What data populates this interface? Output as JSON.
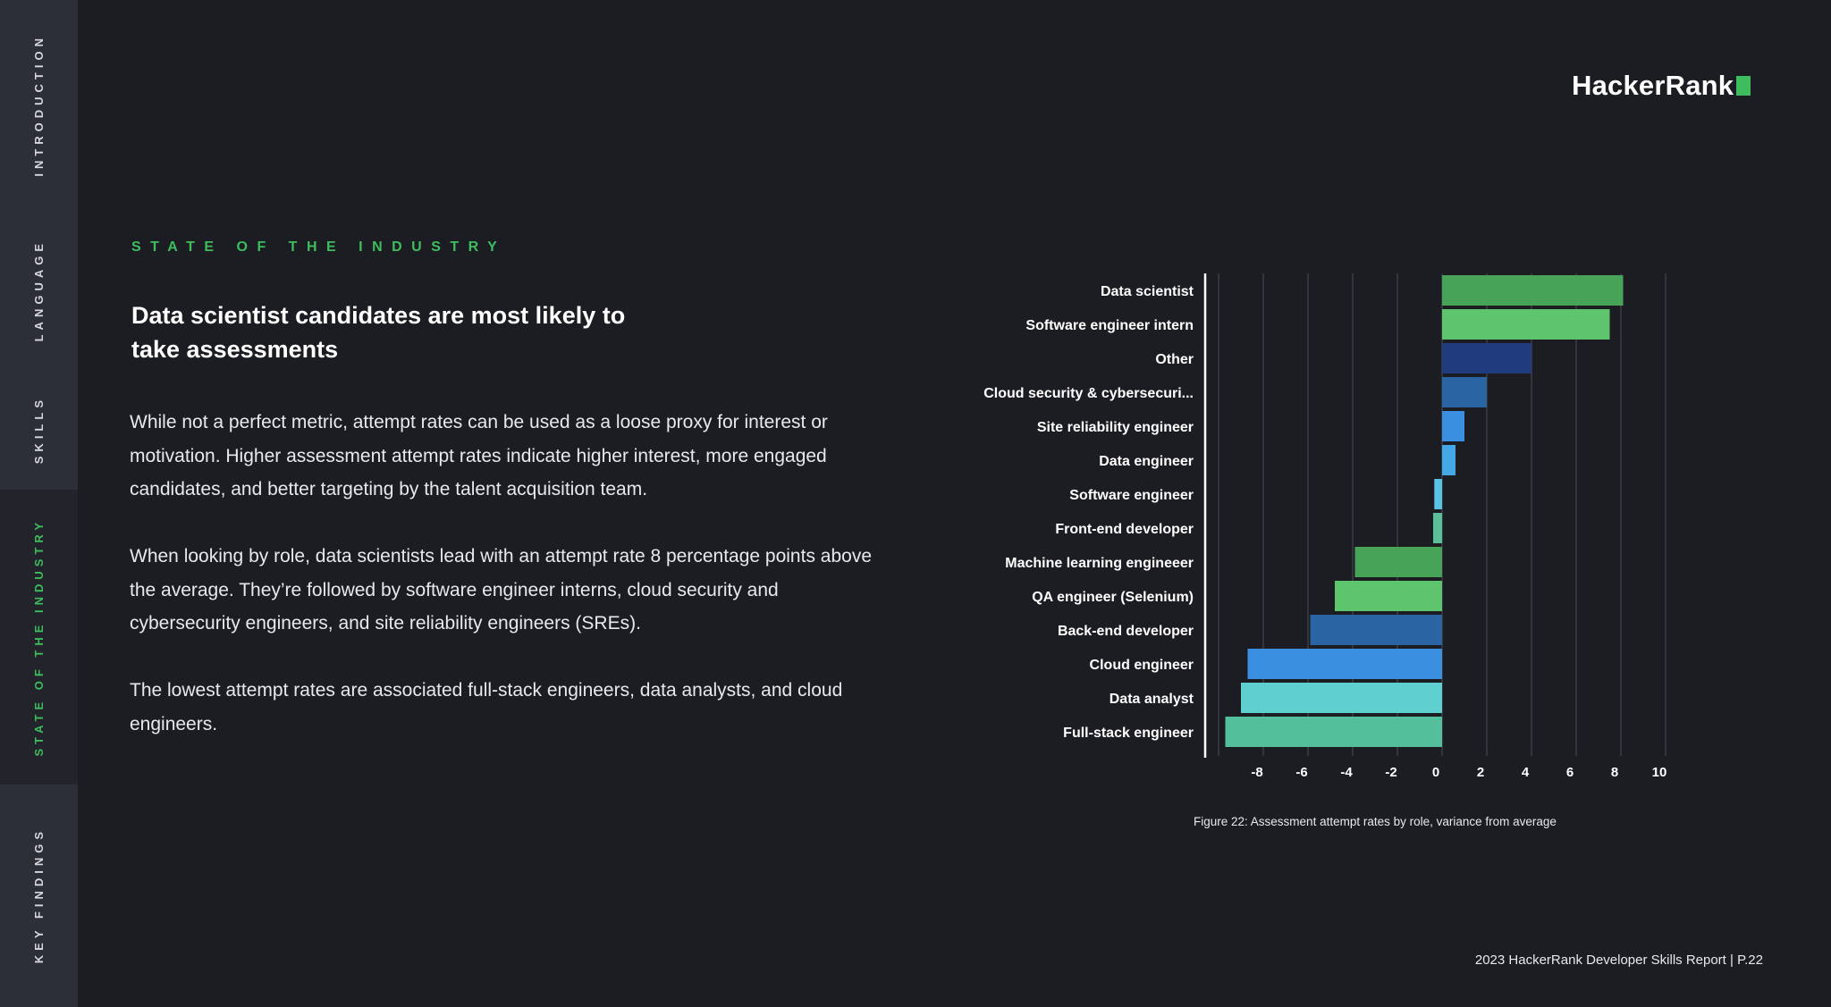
{
  "sidebar": {
    "tabs": [
      {
        "label": "INTRODUCTION",
        "active": false
      },
      {
        "label": "LANGUAGE",
        "active": false
      },
      {
        "label": "SKILLS",
        "active": false
      },
      {
        "label": "STATE OF THE INDUSTRY",
        "active": true
      },
      {
        "label": "KEY FINDINGS",
        "active": false
      }
    ]
  },
  "logo": {
    "text": "HackerRank"
  },
  "section": {
    "eyebrow": "STATE OF THE INDUSTRY"
  },
  "headline": "Data scientist candidates are most likely to take assessments",
  "body": {
    "p1": "While not a perfect metric, attempt rates can be used as a loose proxy for interest or motivation. Higher assessment attempt rates indicate higher interest, more engaged candidates, and better targeting by the talent acquisition team.",
    "p2": "When looking by role, data scientists lead with an attempt rate 8 percentage points above the average. They’re followed by software engineer interns, cloud security and cybersecurity engineers, and site reliability engineers (SREs).",
    "p3": "The lowest attempt rates are associated full-stack engineers, data analysts, and cloud engineers."
  },
  "chart_data": {
    "type": "bar",
    "orientation": "horizontal",
    "categories": [
      "Data scientist",
      "Software engineer intern",
      "Other",
      "Cloud security & cybersecuri...",
      "Site reliability engineer",
      "Data engineer",
      "Software engineer",
      "Front-end developer",
      "Machine learning engineeer",
      "QA engineer (Selenium)",
      "Back-end developer",
      "Cloud engineer",
      "Data analyst",
      "Full-stack engineer"
    ],
    "values": [
      8.1,
      7.5,
      4.0,
      2.0,
      1.0,
      0.6,
      -0.35,
      -0.4,
      -3.9,
      -4.8,
      -5.9,
      -8.7,
      -9.0,
      -9.7
    ],
    "colors": [
      "#47a358",
      "#5fc46e",
      "#203c7e",
      "#2b64a3",
      "#3a8fe0",
      "#46a7e6",
      "#5bc2e3",
      "#5bbf9c",
      "#47a358",
      "#5fc46e",
      "#2b64a3",
      "#3a8fe0",
      "#5fcfcf",
      "#54c09b"
    ],
    "x_ticks": [
      "-8",
      "-6",
      "-4",
      "-2",
      "0",
      "2",
      "4",
      "6",
      "8",
      "10"
    ],
    "xlim": [
      -10,
      10
    ],
    "grid": true
  },
  "caption": "Figure 22: Assessment attempt rates by role, variance from average",
  "footer": "2023 HackerRank Developer Skills Report | P.22"
}
